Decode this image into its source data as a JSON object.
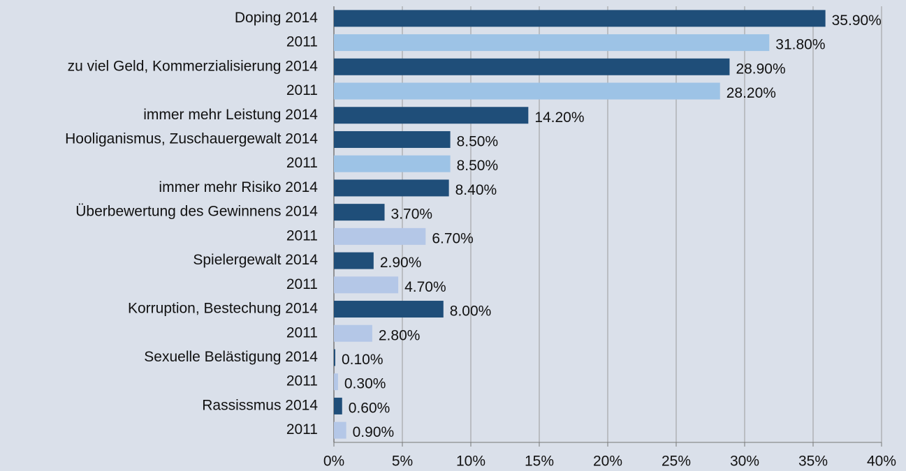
{
  "chart_data": {
    "type": "bar",
    "orientation": "horizontal",
    "categories": [
      "Doping 2014",
      "2011",
      "zu viel Geld, Kommerzialisierung 2014",
      "2011",
      "immer mehr Leistung 2014",
      "Hooliganismus, Zuschauergewalt 2014",
      "2011",
      "immer mehr Risiko 2014",
      "Überbewertung des Gewinnens 2014",
      "2011",
      "Spielergewalt 2014",
      "2011",
      "Korruption, Bestechung 2014",
      "2011",
      "Sexuelle Belästigung 2014",
      "2011",
      "Rassissmus 2014",
      "2011"
    ],
    "values": [
      35.9,
      31.8,
      28.9,
      28.2,
      14.2,
      8.5,
      8.5,
      8.4,
      3.7,
      6.7,
      2.9,
      4.7,
      8.0,
      2.8,
      0.1,
      0.3,
      0.6,
      0.9
    ],
    "value_labels": [
      "35.90%",
      "31.80%",
      "28.90%",
      "28.20%",
      "14.20%",
      "8.50%",
      "8.50%",
      "8.40%",
      "3.70%",
      "6.70%",
      "2.90%",
      "4.70%",
      "8.00%",
      "2.80%",
      "0.10%",
      "0.30%",
      "0.60%",
      "0.90%"
    ],
    "colors": [
      "#1f4e79",
      "#9dc3e6",
      "#1f4e79",
      "#9dc3e6",
      "#1f4e79",
      "#1f4e79",
      "#9dc3e6",
      "#1f4e79",
      "#1f4e79",
      "#b4c7e7",
      "#1f4e79",
      "#b4c7e7",
      "#1f4e79",
      "#b4c7e7",
      "#1f4e79",
      "#b4c7e7",
      "#1f4e79",
      "#b4c7e7"
    ],
    "xlim": [
      0,
      40
    ],
    "xticks": [
      {
        "value": 0,
        "label": "0%"
      },
      {
        "value": 5,
        "label": "5%"
      },
      {
        "value": 10,
        "label": "10%"
      },
      {
        "value": 15,
        "label": "15%"
      },
      {
        "value": 20,
        "label": "20%"
      },
      {
        "value": 25,
        "label": "25%"
      },
      {
        "value": 30,
        "label": "30%"
      },
      {
        "value": 35,
        "label": "35%"
      },
      {
        "value": 40,
        "label": "40%"
      }
    ],
    "grid": true
  }
}
